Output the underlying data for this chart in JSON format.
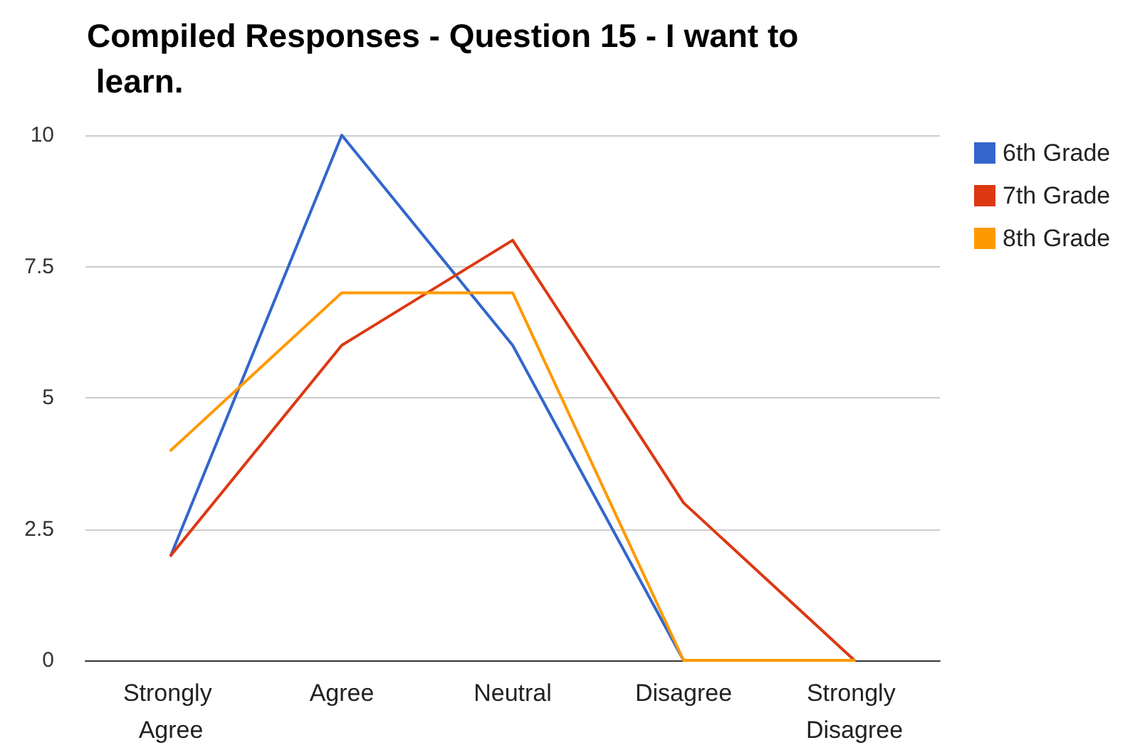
{
  "chart_data": {
    "type": "line",
    "title": "Compiled Responses - Question 15 - I want to learn.",
    "categories": [
      "Strongly Agree",
      "Agree",
      "Neutral",
      "Disagree",
      "Strongly Disagree"
    ],
    "series": [
      {
        "name": "6th Grade",
        "color": "#3366cc",
        "values": [
          2,
          10,
          6,
          0,
          0
        ]
      },
      {
        "name": "7th Grade",
        "color": "#dc3912",
        "values": [
          2,
          6,
          8,
          3,
          0
        ]
      },
      {
        "name": "8th Grade",
        "color": "#ff9900",
        "values": [
          4,
          7,
          7,
          0,
          0
        ]
      }
    ],
    "ylim": [
      0,
      10
    ],
    "yticks": [
      0,
      2.5,
      5,
      7.5,
      10
    ],
    "grid": "y",
    "legend": "right",
    "marker": "none",
    "line_style": "solid"
  }
}
